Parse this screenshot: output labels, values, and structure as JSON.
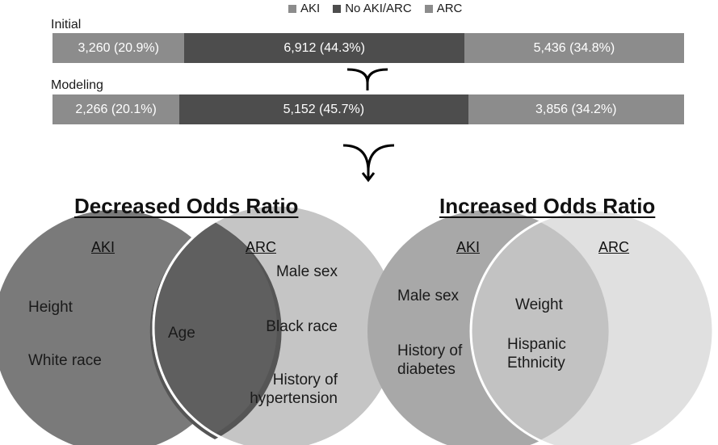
{
  "legend": [
    {
      "label": "AKI",
      "color": "#8c8c8c"
    },
    {
      "label": "No AKI/ARC",
      "color": "#4d4d4d"
    },
    {
      "label": "ARC",
      "color": "#8c8c8c"
    }
  ],
  "bars": {
    "initial": {
      "label": "Initial",
      "segments": [
        {
          "text": "3,260 (20.9%)",
          "fraction": 0.209,
          "color": "#8c8c8c"
        },
        {
          "text": "6,912 (44.3%)",
          "fraction": 0.443,
          "color": "#4d4d4d"
        },
        {
          "text": "5,436 (34.8%)",
          "fraction": 0.348,
          "color": "#8c8c8c"
        }
      ]
    },
    "modeling": {
      "label": "Modeling",
      "segments": [
        {
          "text": "2,266 (20.1%)",
          "fraction": 0.201,
          "color": "#8c8c8c"
        },
        {
          "text": "5,152 (45.7%)",
          "fraction": 0.457,
          "color": "#4d4d4d"
        },
        {
          "text": "3,856 (34.2%)",
          "fraction": 0.342,
          "color": "#8c8c8c"
        }
      ]
    }
  },
  "decreased": {
    "title": "Decreased Odds Ratio",
    "left_label": "AKI",
    "right_label": "ARC",
    "left_items": [
      "Height",
      "White race"
    ],
    "overlap": "Age",
    "right_items": [
      "Male sex",
      "Black race",
      "History of\nhypertension"
    ]
  },
  "increased": {
    "title": "Increased Odds Ratio",
    "left_label": "AKI",
    "right_label": "ARC",
    "left_items": [
      "Male sex",
      "History of\ndiabetes"
    ],
    "overlap_items": [
      "Weight",
      "Hispanic\nEthnicity"
    ]
  }
}
